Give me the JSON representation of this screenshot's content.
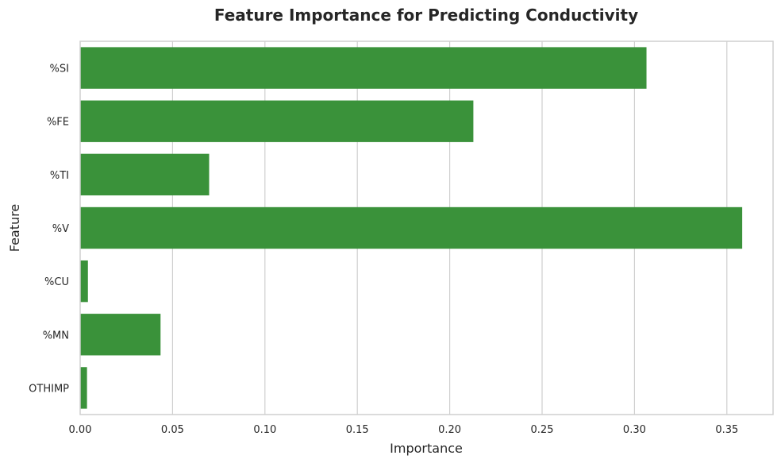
{
  "chart_data": {
    "type": "bar",
    "orientation": "horizontal",
    "title": "Feature Importance for Predicting Conductivity",
    "xlabel": "Importance",
    "ylabel": "Feature",
    "categories": [
      "%SI",
      "%FE",
      "%TI",
      "%V",
      "%CU",
      "%MN",
      "OTHIMP"
    ],
    "values": [
      0.3065,
      0.2128,
      0.0698,
      0.3583,
      0.0042,
      0.0435,
      0.0037
    ],
    "xlim": [
      0,
      0.375
    ],
    "xticks": [
      "0.00",
      "0.05",
      "0.10",
      "0.15",
      "0.20",
      "0.25",
      "0.30",
      "0.35"
    ],
    "grid": "vertical",
    "bar_color": "#3a923a"
  }
}
